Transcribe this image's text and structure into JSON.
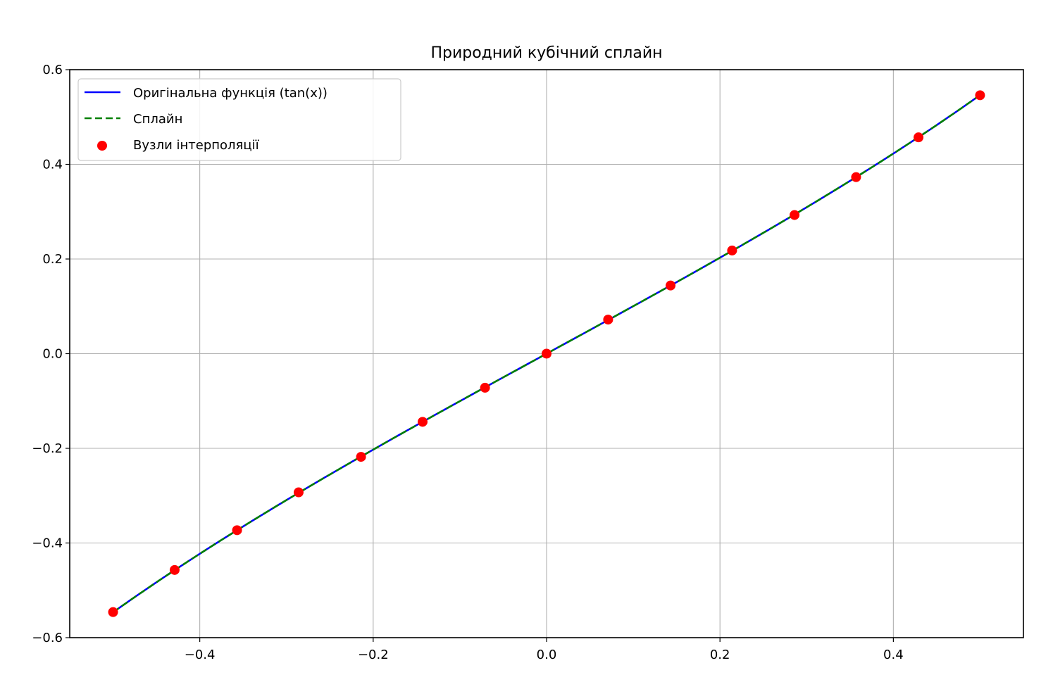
{
  "chart_data": {
    "type": "line",
    "title": "Природний кубічний сплайн",
    "xlabel": "",
    "ylabel": "",
    "xlim": [
      -0.55,
      0.55
    ],
    "ylim": [
      -0.6,
      0.6
    ],
    "xticks": [
      -0.4,
      -0.2,
      0.0,
      0.2,
      0.4
    ],
    "xtick_labels": [
      "−0.4",
      "−0.2",
      "0.0",
      "0.2",
      "0.4"
    ],
    "yticks": [
      -0.6,
      -0.4,
      -0.2,
      0.0,
      0.2,
      0.4,
      0.6
    ],
    "ytick_labels": [
      "−0.6",
      "−0.4",
      "−0.2",
      "0.0",
      "0.2",
      "0.4",
      "0.6"
    ],
    "grid": true,
    "legend_position": "top-left",
    "series": [
      {
        "name": "Оригінальна функція (tan(x))",
        "kind": "line",
        "style": "solid",
        "color": "#0000ff",
        "function": "tan",
        "x_range": [
          -0.5,
          0.5
        ]
      },
      {
        "name": "Сплайн",
        "kind": "line",
        "style": "dashed",
        "color": "#008000",
        "function": "tan",
        "x_range": [
          -0.5,
          0.5
        ]
      },
      {
        "name": "Вузли інтерполяції",
        "kind": "scatter",
        "color": "#ff0000",
        "x": [
          -0.5,
          -0.429,
          -0.357,
          -0.286,
          -0.214,
          -0.143,
          -0.071,
          0.0,
          0.071,
          0.143,
          0.214,
          0.286,
          0.357,
          0.429,
          0.5
        ],
        "y": [
          -0.546,
          -0.457,
          -0.373,
          -0.293,
          -0.218,
          -0.144,
          -0.072,
          0.0,
          0.072,
          0.144,
          0.218,
          0.293,
          0.373,
          0.457,
          0.546
        ]
      }
    ]
  }
}
